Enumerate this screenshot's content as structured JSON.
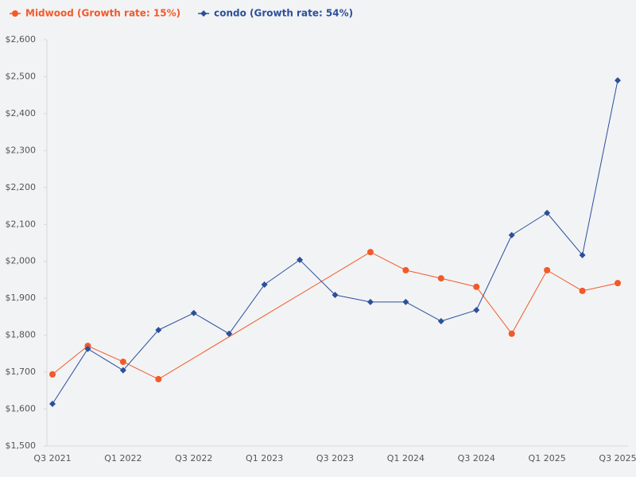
{
  "chart_data": {
    "type": "line",
    "categories": [
      "Q3 2021",
      null,
      "Q1 2022",
      null,
      "Q3 2022",
      null,
      "Q1 2023",
      null,
      "Q3 2023",
      null,
      "Q1 2024",
      null,
      "Q3 2024",
      null,
      "Q1 2025",
      null,
      "Q3 2025"
    ],
    "series": [
      {
        "name": "Midwood (Growth rate: 15%)",
        "color": "#f15a29",
        "marker": "circle",
        "values": [
          1694,
          1771,
          1728,
          1681,
          null,
          null,
          null,
          null,
          null,
          2025,
          1976,
          1954,
          1931,
          1804,
          1976,
          1920,
          1941
        ]
      },
      {
        "name": "condo (Growth rate: 54%)",
        "color": "#2b4f9a",
        "marker": "diamond",
        "values": [
          1614,
          1763,
          1705,
          1814,
          1860,
          1804,
          1937,
          2004,
          1909,
          1890,
          1890,
          1838,
          1868,
          2071,
          2131,
          2017,
          2490
        ]
      }
    ],
    "ylim": [
      1500,
      2600
    ],
    "yticks": [
      {
        "value": 1500,
        "label": "$1,500"
      },
      {
        "value": 1600,
        "label": "$1,600"
      },
      {
        "value": 1700,
        "label": "$1,700"
      },
      {
        "value": 1800,
        "label": "$1,800"
      },
      {
        "value": 1900,
        "label": "$1,900"
      },
      {
        "value": 2000,
        "label": "$2,000"
      },
      {
        "value": 2100,
        "label": "$2,100"
      },
      {
        "value": 2200,
        "label": "$2,200"
      },
      {
        "value": 2300,
        "label": "$2,300"
      },
      {
        "value": 2400,
        "label": "$2,400"
      },
      {
        "value": 2500,
        "label": "$2,500"
      },
      {
        "value": 2600,
        "label": "$2,600"
      }
    ],
    "grid": false,
    "legend": "top-left",
    "connect_gaps": true
  }
}
